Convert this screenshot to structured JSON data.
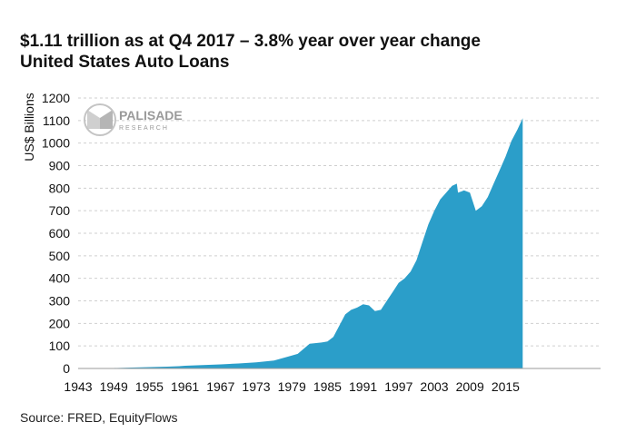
{
  "header": {
    "title": "$1.11 trillion as at Q4 2017 – 3.8% year over year change",
    "subtitle": "United States Auto Loans"
  },
  "footer": {
    "source": "Source:  FRED, EquityFlows"
  },
  "logo": {
    "name": "PALISADE",
    "tagline": "RESEARCH"
  },
  "colors": {
    "area_fill": "#2b9ec9",
    "grid": "#cfcfcf",
    "text": "#111111"
  },
  "chart_data": {
    "type": "area",
    "title": "United States Auto Loans",
    "ylabel": "US$ Billions",
    "xlabel": "",
    "ylim": [
      0,
      1200
    ],
    "xlim": [
      1943,
      2018
    ],
    "y_ticks": [
      0,
      100,
      200,
      300,
      400,
      500,
      600,
      700,
      800,
      900,
      1000,
      1100,
      1200
    ],
    "x_ticks": [
      1943,
      1949,
      1955,
      1961,
      1967,
      1973,
      1979,
      1985,
      1991,
      1997,
      2003,
      2009,
      2015
    ],
    "grid": true,
    "series": [
      {
        "x": [
          1943,
          1946,
          1949,
          1952,
          1955,
          1958,
          1960,
          1961,
          1964,
          1967,
          1970,
          1973,
          1976,
          1979,
          1980,
          1982,
          1984,
          1985,
          1986,
          1987,
          1988,
          1989,
          1990,
          1991,
          1992,
          1993,
          1994,
          1995,
          1996,
          1997,
          1998,
          1999,
          2000,
          2001,
          2002,
          2003,
          2004,
          2005,
          2006,
          2006.8,
          2007,
          2008,
          2009,
          2010,
          2011,
          2012,
          2013,
          2014,
          2015,
          2016,
          2017,
          2017.9
        ],
        "values": [
          0,
          0,
          2,
          4,
          6,
          8,
          10,
          12,
          15,
          18,
          22,
          27,
          35,
          57,
          65,
          110,
          115,
          120,
          140,
          190,
          240,
          260,
          270,
          285,
          280,
          255,
          260,
          300,
          340,
          380,
          400,
          430,
          480,
          560,
          640,
          700,
          750,
          780,
          810,
          820,
          780,
          790,
          780,
          700,
          720,
          760,
          820,
          880,
          940,
          1010,
          1060,
          1110
        ]
      }
    ]
  }
}
